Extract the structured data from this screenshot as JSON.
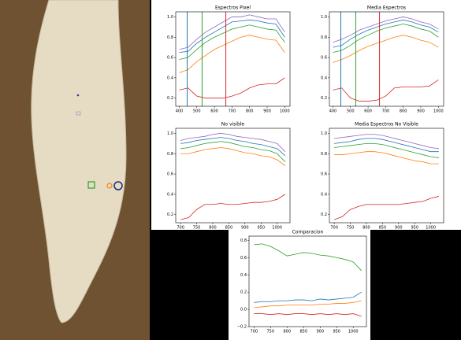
{
  "chart_data": [
    {
      "type": "line",
      "title": "Espectros Pixel",
      "x": [
        400,
        450,
        500,
        550,
        600,
        650,
        700,
        750,
        800,
        850,
        900,
        950,
        1000
      ],
      "xlim": [
        380,
        1030
      ],
      "xticks": [
        400,
        500,
        600,
        700,
        800,
        900,
        1000
      ],
      "ylim": [
        0.12,
        1.05
      ],
      "yticks": [
        0.2,
        0.4,
        0.6,
        0.8,
        {
          "value": 1,
          "label": "1.0"
        }
      ],
      "vlines": [
        {
          "x": 445,
          "color": "#1f77b4"
        },
        {
          "x": 530,
          "color": "#2ca02c"
        },
        {
          "x": 665,
          "color": "#d62728"
        }
      ],
      "series": [
        {
          "color": "#9467bd",
          "values": [
            0.68,
            0.7,
            0.78,
            0.85,
            0.9,
            0.95,
            1.0,
            1.0,
            1.02,
            1.0,
            0.98,
            0.98,
            0.85
          ]
        },
        {
          "color": "#1f77b4",
          "values": [
            0.65,
            0.66,
            0.74,
            0.8,
            0.85,
            0.9,
            0.95,
            0.96,
            0.97,
            0.96,
            0.94,
            0.93,
            0.8
          ]
        },
        {
          "color": "#2ca02c",
          "values": [
            0.58,
            0.6,
            0.68,
            0.75,
            0.8,
            0.84,
            0.88,
            0.9,
            0.92,
            0.9,
            0.88,
            0.87,
            0.75
          ]
        },
        {
          "color": "#ff7f0e",
          "values": [
            0.45,
            0.48,
            0.56,
            0.62,
            0.68,
            0.72,
            0.76,
            0.8,
            0.82,
            0.8,
            0.78,
            0.77,
            0.65
          ]
        },
        {
          "color": "#d62728",
          "values": [
            0.28,
            0.3,
            0.22,
            0.2,
            0.2,
            0.2,
            0.22,
            0.25,
            0.3,
            0.33,
            0.34,
            0.34,
            0.4
          ]
        }
      ]
    },
    {
      "type": "line",
      "title": "Media Espectros",
      "x": [
        400,
        450,
        500,
        550,
        600,
        650,
        700,
        750,
        800,
        850,
        900,
        950,
        1000
      ],
      "xlim": [
        380,
        1030
      ],
      "xticks": [
        400,
        500,
        600,
        700,
        800,
        900,
        1000
      ],
      "ylim": [
        0.12,
        1.05
      ],
      "yticks": [
        0.2,
        0.4,
        0.6,
        0.8,
        {
          "value": 1,
          "label": "1.0"
        }
      ],
      "vlines": [
        {
          "x": 445,
          "color": "#1f77b4"
        },
        {
          "x": 530,
          "color": "#2ca02c"
        },
        {
          "x": 665,
          "color": "#d62728"
        }
      ],
      "series": [
        {
          "color": "#9467bd",
          "values": [
            0.75,
            0.78,
            0.82,
            0.87,
            0.9,
            0.93,
            0.96,
            0.98,
            1.0,
            0.98,
            0.95,
            0.93,
            0.88
          ]
        },
        {
          "color": "#1f77b4",
          "values": [
            0.7,
            0.72,
            0.78,
            0.83,
            0.87,
            0.9,
            0.93,
            0.95,
            0.97,
            0.95,
            0.92,
            0.9,
            0.85
          ]
        },
        {
          "color": "#2ca02c",
          "values": [
            0.65,
            0.67,
            0.72,
            0.78,
            0.82,
            0.86,
            0.89,
            0.91,
            0.93,
            0.91,
            0.88,
            0.86,
            0.8
          ]
        },
        {
          "color": "#ff7f0e",
          "values": [
            0.55,
            0.58,
            0.62,
            0.67,
            0.71,
            0.74,
            0.77,
            0.8,
            0.82,
            0.8,
            0.77,
            0.75,
            0.7
          ]
        },
        {
          "color": "#d62728",
          "values": [
            0.28,
            0.3,
            0.2,
            0.17,
            0.17,
            0.18,
            0.22,
            0.3,
            0.31,
            0.31,
            0.31,
            0.32,
            0.38
          ]
        }
      ]
    },
    {
      "type": "line",
      "title": "No visible",
      "x": [
        700,
        725,
        750,
        775,
        800,
        825,
        850,
        875,
        900,
        925,
        950,
        975,
        1000,
        1025
      ],
      "xlim": [
        685,
        1040
      ],
      "xticks": [
        700,
        750,
        800,
        850,
        900,
        950,
        1000
      ],
      "ylim": [
        0.12,
        1.05
      ],
      "yticks": [
        0.2,
        0.4,
        0.6,
        0.8,
        {
          "value": 1,
          "label": "1.0"
        }
      ],
      "series": [
        {
          "color": "#9467bd",
          "values": [
            0.93,
            0.95,
            0.96,
            0.97,
            0.99,
            1.0,
            0.99,
            0.97,
            0.96,
            0.95,
            0.94,
            0.92,
            0.9,
            0.82
          ]
        },
        {
          "color": "#1f77b4",
          "values": [
            0.9,
            0.91,
            0.93,
            0.94,
            0.95,
            0.96,
            0.95,
            0.93,
            0.92,
            0.9,
            0.89,
            0.87,
            0.85,
            0.78
          ]
        },
        {
          "color": "#2ca02c",
          "values": [
            0.85,
            0.86,
            0.88,
            0.9,
            0.91,
            0.92,
            0.91,
            0.89,
            0.87,
            0.86,
            0.84,
            0.83,
            0.8,
            0.72
          ]
        },
        {
          "color": "#ff7f0e",
          "values": [
            0.8,
            0.8,
            0.82,
            0.84,
            0.85,
            0.86,
            0.85,
            0.83,
            0.81,
            0.8,
            0.78,
            0.77,
            0.74,
            0.68
          ]
        },
        {
          "color": "#d62728",
          "values": [
            0.15,
            0.17,
            0.25,
            0.3,
            0.3,
            0.31,
            0.3,
            0.3,
            0.31,
            0.32,
            0.32,
            0.33,
            0.35,
            0.4
          ]
        }
      ]
    },
    {
      "type": "line",
      "title": "Media Espectros No Visible",
      "x": [
        700,
        725,
        750,
        775,
        800,
        825,
        850,
        875,
        900,
        925,
        950,
        975,
        1000,
        1025
      ],
      "xlim": [
        685,
        1040
      ],
      "xticks": [
        700,
        750,
        800,
        850,
        900,
        950,
        1000
      ],
      "ylim": [
        0.12,
        1.05
      ],
      "yticks": [
        0.2,
        0.4,
        0.6,
        0.8,
        {
          "value": 1,
          "label": "1.0"
        }
      ],
      "series": [
        {
          "color": "#9467bd",
          "values": [
            0.95,
            0.96,
            0.97,
            0.98,
            0.99,
            0.99,
            0.98,
            0.96,
            0.94,
            0.92,
            0.9,
            0.88,
            0.86,
            0.85
          ]
        },
        {
          "color": "#1f77b4",
          "values": [
            0.9,
            0.91,
            0.92,
            0.94,
            0.95,
            0.95,
            0.94,
            0.92,
            0.9,
            0.88,
            0.86,
            0.84,
            0.82,
            0.82
          ]
        },
        {
          "color": "#2ca02c",
          "values": [
            0.86,
            0.87,
            0.88,
            0.89,
            0.9,
            0.9,
            0.89,
            0.87,
            0.85,
            0.83,
            0.81,
            0.79,
            0.77,
            0.76
          ]
        },
        {
          "color": "#ff7f0e",
          "values": [
            0.79,
            0.79,
            0.8,
            0.81,
            0.82,
            0.82,
            0.81,
            0.79,
            0.77,
            0.75,
            0.73,
            0.72,
            0.7,
            0.7
          ]
        },
        {
          "color": "#d62728",
          "values": [
            0.15,
            0.18,
            0.25,
            0.28,
            0.3,
            0.3,
            0.3,
            0.3,
            0.3,
            0.31,
            0.32,
            0.33,
            0.36,
            0.38
          ]
        }
      ]
    },
    {
      "type": "line",
      "title": "Comparacion",
      "x": [
        700,
        725,
        750,
        775,
        800,
        825,
        850,
        875,
        900,
        925,
        950,
        975,
        1000,
        1025
      ],
      "xlim": [
        685,
        1040
      ],
      "xticks": [
        700,
        750,
        800,
        850,
        900,
        950,
        1000
      ],
      "ylim": [
        -0.2,
        0.85
      ],
      "yticks": [
        {
          "value": -0.2,
          "label": "−0.2"
        },
        {
          "value": 0,
          "label": "0.0"
        },
        0.2,
        0.4,
        0.6,
        0.8
      ],
      "series": [
        {
          "color": "#2ca02c",
          "values": [
            0.75,
            0.76,
            0.73,
            0.68,
            0.62,
            0.64,
            0.66,
            0.65,
            0.63,
            0.62,
            0.6,
            0.58,
            0.55,
            0.45
          ]
        },
        {
          "color": "#1f77b4",
          "values": [
            0.08,
            0.09,
            0.09,
            0.1,
            0.1,
            0.11,
            0.11,
            0.1,
            0.12,
            0.11,
            0.12,
            0.13,
            0.14,
            0.2
          ]
        },
        {
          "color": "#ff7f0e",
          "values": [
            0.02,
            0.03,
            0.04,
            0.04,
            0.05,
            0.05,
            0.05,
            0.05,
            0.06,
            0.06,
            0.07,
            0.07,
            0.08,
            0.1
          ]
        },
        {
          "color": "#d62728",
          "values": [
            -0.05,
            -0.05,
            -0.06,
            -0.05,
            -0.06,
            -0.05,
            -0.05,
            -0.06,
            -0.05,
            -0.06,
            -0.05,
            -0.06,
            -0.05,
            -0.08
          ]
        }
      ]
    }
  ]
}
